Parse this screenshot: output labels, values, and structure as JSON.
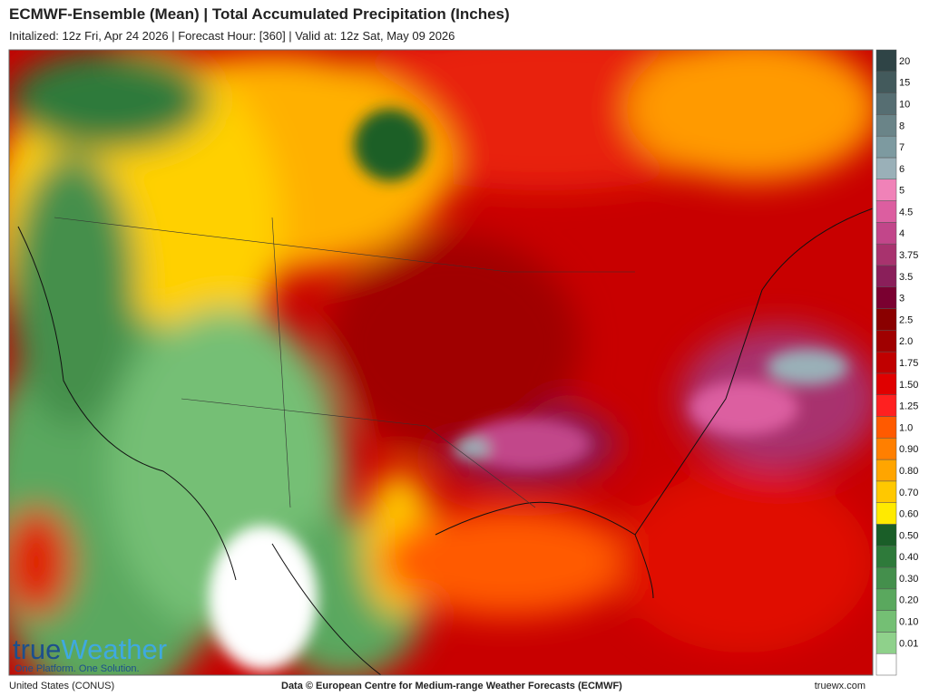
{
  "header": {
    "title": "ECMWF-Ensemble (Mean)  | Total Accumulated Precipitation (Inches)",
    "subtitle": "Initalized: 12z Fri, Apr 24 2026  |  Forecast Hour: [360]  |  Valid at: 12z Sat, May 09 2026"
  },
  "legend": {
    "labels": [
      "0.01",
      "0.10",
      "0.20",
      "0.30",
      "0.40",
      "0.50",
      "0.60",
      "0.70",
      "0.80",
      "0.90",
      "1.0",
      "1.25",
      "1.50",
      "1.75",
      "2.0",
      "2.5",
      "3",
      "3.5",
      "3.75",
      "4",
      "4.5",
      "5",
      "6",
      "7",
      "8",
      "10",
      "15",
      "20"
    ],
    "colors": [
      "#ffffff",
      "#8fd18b",
      "#74bf74",
      "#5aa85e",
      "#448f4c",
      "#2e7a3a",
      "#1a5e28",
      "#ffea00",
      "#ffc800",
      "#ffa500",
      "#ff7f00",
      "#ff5a00",
      "#ff2020",
      "#e00000",
      "#c00000",
      "#a00000",
      "#8a0000",
      "#7a0030",
      "#8a1f5a",
      "#a8336e",
      "#c2468a",
      "#dc5ea0",
      "#f082b8",
      "#9ab0b8",
      "#7d9aa0",
      "#6a8488",
      "#566e72",
      "#435a5c",
      "#2f4446"
    ]
  },
  "logo": {
    "part1": "true",
    "part2": "Weather",
    "tagline": "One Platform. One Solution."
  },
  "footer": {
    "left": "United States (CONUS)",
    "center": "Data © European Centre for Medium-range Weather Forecasts (ECMWF)",
    "right": "truewx.com"
  }
}
